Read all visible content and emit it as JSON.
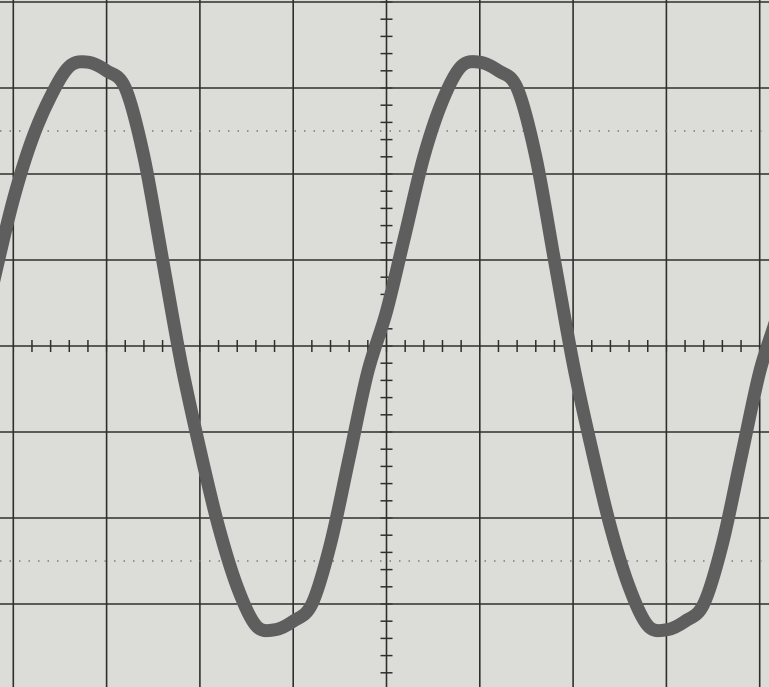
{
  "screen": {
    "background": "#dcdcd8",
    "grid_color": "#2e2e2e",
    "trace_color": "#5e5e5e"
  },
  "chart_data": {
    "type": "line",
    "title": "",
    "xlabel": "",
    "ylabel": "",
    "grid": true,
    "graticule": {
      "x_divisions": 10,
      "y_divisions": 8,
      "minor_ticks_per_division": 5,
      "dotted_reference_levels": [
        2.5,
        -2.5
      ]
    },
    "xlim": [
      -5,
      5
    ],
    "ylim": [
      -4,
      4
    ],
    "series": [
      {
        "x": [
          -5.0,
          -4.8,
          -4.6,
          -4.4,
          -4.2,
          -4.0,
          -3.8,
          -3.6,
          -3.4,
          -3.2,
          -3.0,
          -2.8,
          -2.6,
          -2.4,
          -2.2,
          -2.0,
          -1.8,
          -1.6,
          -1.4,
          -1.2,
          -1.0,
          -0.8,
          -0.6,
          -0.4,
          -0.2,
          0.0,
          0.2,
          0.4,
          0.6,
          0.8,
          1.0,
          1.2,
          1.4,
          1.6,
          1.8,
          2.0,
          2.2,
          2.4,
          2.6,
          2.8,
          3.0,
          3.2,
          3.4,
          3.6,
          3.8,
          4.0,
          4.2,
          4.4,
          4.6,
          4.8,
          5.0
        ],
        "y": [
          -3.0,
          -2.2,
          -1.2,
          -0.2,
          0.8,
          1.7,
          2.4,
          2.9,
          3.25,
          3.3,
          3.2,
          3.0,
          2.2,
          1.0,
          -0.2,
          -1.2,
          -2.1,
          -2.8,
          -3.25,
          -3.3,
          -3.2,
          -3.0,
          -2.3,
          -1.3,
          -0.3,
          0.4,
          1.3,
          2.2,
          2.85,
          3.25,
          3.3,
          3.2,
          3.0,
          2.2,
          1.0,
          -0.2,
          -1.2,
          -2.1,
          -2.8,
          -3.25,
          -3.3,
          -3.2,
          -3.0,
          -2.3,
          -1.3,
          -0.3,
          0.4,
          1.3,
          2.2,
          2.8,
          3.1
        ]
      }
    ]
  }
}
